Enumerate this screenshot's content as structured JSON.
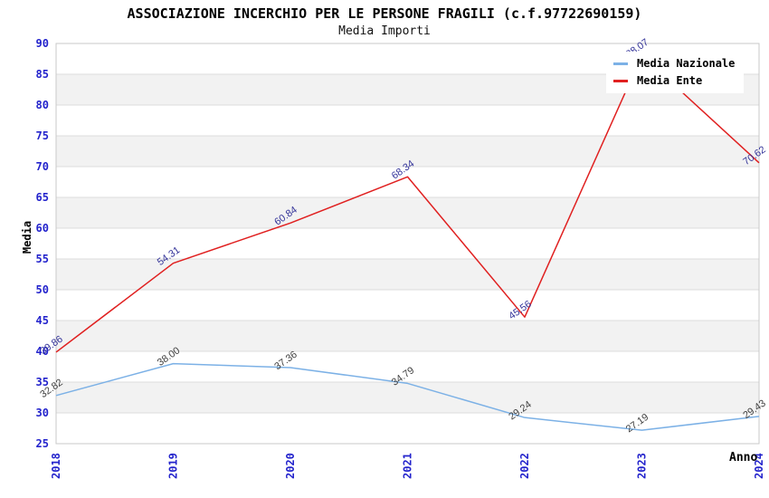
{
  "chart_data": {
    "type": "line",
    "title": "ASSOCIAZIONE INCERCHIO PER LE PERSONE FRAGILI (c.f.97722690159)",
    "subtitle": "Media Importi",
    "xlabel": "Anno",
    "ylabel": "Media",
    "ylim": [
      25,
      90
    ],
    "ytick_step": 5,
    "yticks": [
      25,
      30,
      35,
      40,
      45,
      50,
      55,
      60,
      65,
      70,
      75,
      80,
      85,
      90
    ],
    "categories": [
      "2018",
      "2019",
      "2020",
      "2021",
      "2022",
      "2023",
      "2024"
    ],
    "series": [
      {
        "name": "Media Nazionale",
        "color": "#7CB1E6",
        "label_color": "#404040",
        "values": [
          32.82,
          38.0,
          37.36,
          34.79,
          29.24,
          27.19,
          29.43
        ]
      },
      {
        "name": "Media Ente",
        "color": "#E02020",
        "label_color": "#333399",
        "values": [
          39.86,
          54.31,
          60.84,
          68.34,
          45.56,
          88.07,
          70.62
        ]
      }
    ],
    "legend_position": "top-right",
    "grid": "horizontal-bands",
    "colors": {
      "tick_label": "#2323CC",
      "band_fill": "#F2F2F2",
      "gridline": "#DCDCDC",
      "plot_border": "#C9C9C9",
      "background": "#FFFFFF"
    }
  }
}
